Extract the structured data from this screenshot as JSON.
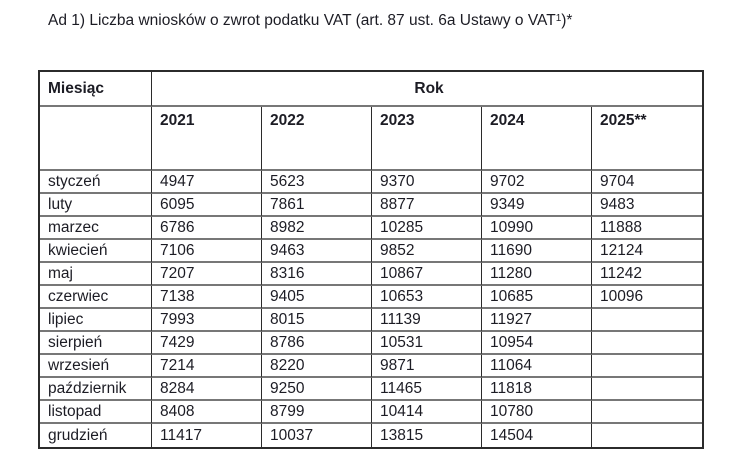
{
  "colors": {
    "text": "#1c1c24",
    "border_dark": "#2b2b2b",
    "border_gray": "#777777",
    "background": "#ffffff"
  },
  "title": {
    "prefix": "Ad 1) Liczba wniosków o zwrot podatku VAT (art. 87 ust. 6a Ustawy o VAT",
    "superscript": "1",
    "suffix": ")*"
  },
  "table": {
    "month_header": "Miesiąc",
    "year_group_header": "Rok",
    "year_columns": [
      "2021",
      "2022",
      "2023",
      "2024",
      "2025**"
    ],
    "rows": [
      {
        "month": "styczeń",
        "values": [
          "4947",
          "5623",
          "9370",
          "9702",
          "9704"
        ]
      },
      {
        "month": "luty",
        "values": [
          "6095",
          "7861",
          "8877",
          "9349",
          "9483"
        ]
      },
      {
        "month": "marzec",
        "values": [
          "6786",
          "8982",
          "10285",
          "10990",
          "11888"
        ]
      },
      {
        "month": "kwiecień",
        "values": [
          "7106",
          "9463",
          "9852",
          "11690",
          "12124"
        ]
      },
      {
        "month": "maj",
        "values": [
          "7207",
          "8316",
          "10867",
          "11280",
          "11242"
        ]
      },
      {
        "month": "czerwiec",
        "values": [
          "7138",
          "9405",
          "10653",
          "10685",
          "10096"
        ]
      },
      {
        "month": "lipiec",
        "values": [
          "7993",
          "8015",
          "11139",
          "11927",
          ""
        ]
      },
      {
        "month": "sierpień",
        "values": [
          "7429",
          "8786",
          "10531",
          "10954",
          ""
        ]
      },
      {
        "month": "wrzesień",
        "values": [
          "7214",
          "8220",
          "9871",
          "11064",
          ""
        ]
      },
      {
        "month": "październik",
        "values": [
          "8284",
          "9250",
          "11465",
          "11818",
          ""
        ]
      },
      {
        "month": "listopad",
        "values": [
          "8408",
          "8799",
          "10414",
          "10780",
          ""
        ]
      },
      {
        "month": "grudzień",
        "values": [
          "11417",
          "10037",
          "13815",
          "14504",
          ""
        ]
      }
    ]
  }
}
